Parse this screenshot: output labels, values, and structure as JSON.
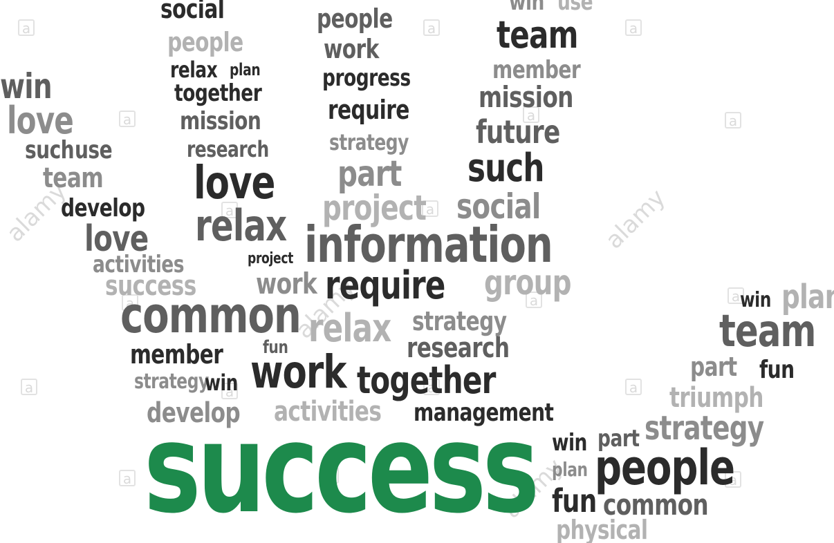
{
  "cloud": {
    "highlight_color": "#1d8a4c",
    "text_colors": [
      "#2b2b2b",
      "#5f5f5f",
      "#8c8c8c",
      "#b2b2b2"
    ],
    "words": {
      "success": "success",
      "social_top": "social",
      "people_1": "people",
      "relax_1": "relax",
      "plan_1": "plan",
      "together_1": "together",
      "mission_1": "mission",
      "research_1": "research",
      "people_2": "people",
      "work_1": "work",
      "progress": "progress",
      "require_1": "require",
      "strategy_1": "strategy",
      "win_1": "win",
      "use_1": "use",
      "team_1": "team",
      "member_1": "member",
      "mission_2": "mission",
      "future": "future",
      "win_2": "win",
      "love_1": "love",
      "such_1": "such",
      "use_2": "use",
      "team_2": "team",
      "develop_1": "develop",
      "love_2": "love",
      "love_3": "love",
      "relax_2": "relax",
      "part_1": "part",
      "project_1": "project",
      "such_2": "such",
      "social_2": "social",
      "information": "information",
      "activities_1": "activities",
      "project_2": "project",
      "success_2": "success",
      "work_2": "work",
      "require_2": "require",
      "group": "group",
      "common_1": "common",
      "relax_3": "relax",
      "strategy_2": "strategy",
      "member_2": "member",
      "fun_1": "fun",
      "research_2": "research",
      "strategy_3": "strategy",
      "win_3": "win",
      "work_3": "work",
      "together_2": "together",
      "develop_2": "develop",
      "activities_2": "activities",
      "management": "management",
      "win_4": "win",
      "plan_2": "plan",
      "team_3": "team",
      "part_2": "part",
      "fun_2": "fun",
      "triumph": "triumph",
      "strategy_4": "strategy",
      "win_5": "win",
      "part_3": "part",
      "people_3": "people",
      "plan_3": "plan",
      "fun_3": "fun",
      "common_2": "common",
      "physical": "physical"
    },
    "watermark": {
      "brand": "alamy",
      "letter": "a"
    }
  }
}
